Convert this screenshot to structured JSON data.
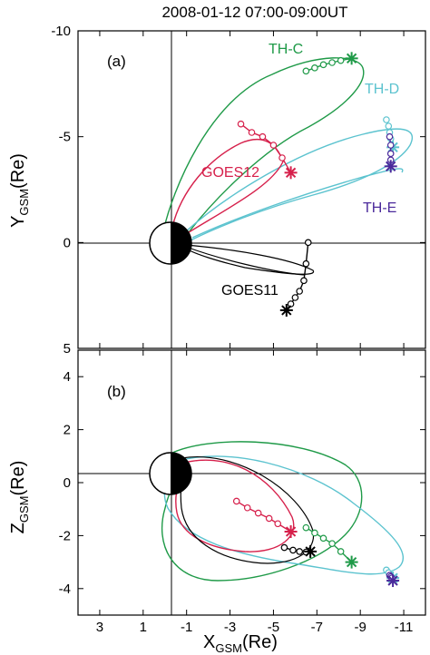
{
  "chart_data": {
    "title": "2008-01-12 07:00-09:00UT",
    "type": "line",
    "colors": {
      "TH-C": "#1f9a48",
      "TH-D": "#5cc3cf",
      "TH-E": "#4b2a9b",
      "GOES12": "#d6204b",
      "GOES11": "#000000"
    },
    "xlabel_main": "X",
    "xlabel_sub": "GSM",
    "xlabel_unit": "(Re)",
    "xticks": [
      "3",
      "1",
      "-1",
      "-3",
      "-5",
      "-7",
      "-9",
      "-11"
    ],
    "xlim": [
      4,
      -12
    ],
    "panels": [
      {
        "id": "a",
        "label": "(a)",
        "ylabel_main": "Y",
        "ylabel_sub": "GSM",
        "ylabel_unit": "(Re)",
        "yticks": [
          "-10",
          "-5",
          "0",
          "5"
        ],
        "ylim": [
          -10,
          5
        ],
        "series": [
          {
            "name": "TH-C",
            "x": [
              -6.5,
              -6.9,
              -7.3,
              -7.7,
              -8.1,
              -8.6
            ],
            "y": [
              -8.1,
              -8.25,
              -8.4,
              -8.5,
              -8.6,
              -8.7
            ]
          },
          {
            "name": "TH-D",
            "x": [
              -10.2,
              -10.3,
              -10.35,
              -10.4,
              -10.5
            ],
            "y": [
              -5.8,
              -5.5,
              -5.2,
              -4.9,
              -4.5
            ]
          },
          {
            "name": "TH-E",
            "x": [
              -10.35,
              -10.4,
              -10.4,
              -10.4,
              -10.4
            ],
            "y": [
              -5.0,
              -4.6,
              -4.2,
              -3.9,
              -3.6
            ]
          },
          {
            "name": "GOES12",
            "x": [
              -3.5,
              -4.0,
              -4.5,
              -5.0,
              -5.4,
              -5.8
            ],
            "y": [
              -5.6,
              -5.2,
              -5.0,
              -4.6,
              -4.0,
              -3.3
            ]
          },
          {
            "name": "GOES11",
            "x": [
              -6.6,
              -6.5,
              -6.4,
              -6.2,
              -6.0,
              -5.8,
              -5.6
            ],
            "y": [
              0.0,
              1.0,
              1.8,
              2.3,
              2.6,
              2.9,
              3.2
            ]
          }
        ]
      },
      {
        "id": "b",
        "label": "(b)",
        "ylabel_main": "Z",
        "ylabel_sub": "GSM",
        "ylabel_unit": "(Re)",
        "yticks": [
          "4",
          "2",
          "0",
          "-2",
          "-4"
        ],
        "ylim": [
          5,
          -5
        ],
        "series": [
          {
            "name": "TH-C",
            "x": [
              -6.5,
              -6.9,
              -7.3,
              -7.7,
              -8.1,
              -8.6
            ],
            "y": [
              -1.7,
              -1.9,
              -2.1,
              -2.3,
              -2.6,
              -3.0
            ]
          },
          {
            "name": "TH-D",
            "x": [
              -10.2,
              -10.3,
              -10.4,
              -10.5
            ],
            "y": [
              -3.3,
              -3.4,
              -3.5,
              -3.6
            ]
          },
          {
            "name": "TH-E",
            "x": [
              -10.35,
              -10.4,
              -10.45,
              -10.5
            ],
            "y": [
              -3.5,
              -3.55,
              -3.6,
              -3.7
            ]
          },
          {
            "name": "GOES12",
            "x": [
              -3.3,
              -3.8,
              -4.3,
              -4.8,
              -5.2,
              -5.8
            ],
            "y": [
              -0.7,
              -0.95,
              -1.15,
              -1.35,
              -1.55,
              -1.85
            ]
          },
          {
            "name": "GOES11",
            "x": [
              -5.5,
              -5.9,
              -6.2,
              -6.5,
              -6.7
            ],
            "y": [
              -2.45,
              -2.55,
              -2.6,
              -2.62,
              -2.6
            ]
          }
        ]
      }
    ],
    "labels_a": {
      "thc": "TH-C",
      "thd": "TH-D",
      "the": "TH-E",
      "goes12": "GOES12",
      "goes11": "GOES11"
    }
  }
}
